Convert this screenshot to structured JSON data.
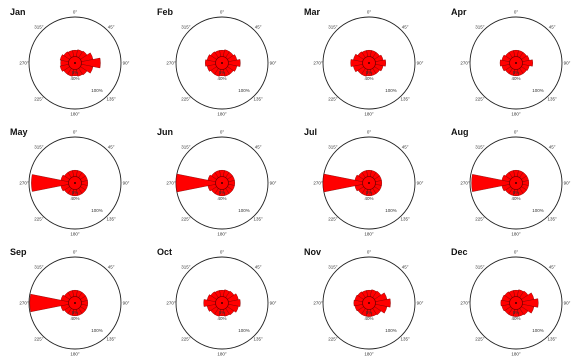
{
  "colors": {
    "petal": "#ff0000",
    "outline": "#7a0000",
    "background": "#ffffff",
    "frame": "#222222"
  },
  "chart_data": {
    "type": "polar-bar",
    "angle_ticks": [
      "0°",
      "45°",
      "90°",
      "135°",
      "180°",
      "225°",
      "270°",
      "315°"
    ],
    "radius_ticks": [
      "5%",
      "40%",
      "100%"
    ],
    "directions_deg": [
      0,
      22.5,
      45,
      67.5,
      90,
      112.5,
      135,
      157.5,
      180,
      202.5,
      225,
      247.5,
      270,
      292.5,
      315,
      337.5
    ],
    "panels": [
      {
        "month": "Jan",
        "values": [
          0.16,
          0.18,
          0.2,
          0.3,
          0.48,
          0.3,
          0.2,
          0.18,
          0.16,
          0.18,
          0.18,
          0.22,
          0.2,
          0.22,
          0.18,
          0.16
        ]
      },
      {
        "month": "Feb",
        "values": [
          0.16,
          0.18,
          0.18,
          0.22,
          0.3,
          0.22,
          0.18,
          0.18,
          0.16,
          0.18,
          0.18,
          0.22,
          0.26,
          0.22,
          0.18,
          0.16
        ]
      },
      {
        "month": "Mar",
        "values": [
          0.16,
          0.16,
          0.16,
          0.2,
          0.26,
          0.2,
          0.16,
          0.16,
          0.16,
          0.18,
          0.18,
          0.24,
          0.3,
          0.24,
          0.18,
          0.16
        ]
      },
      {
        "month": "Apr",
        "values": [
          0.16,
          0.16,
          0.16,
          0.18,
          0.26,
          0.18,
          0.16,
          0.16,
          0.16,
          0.16,
          0.16,
          0.2,
          0.24,
          0.2,
          0.16,
          0.16
        ]
      },
      {
        "month": "May",
        "values": [
          0.16,
          0.16,
          0.16,
          0.16,
          0.16,
          0.16,
          0.16,
          0.16,
          0.16,
          0.16,
          0.16,
          0.2,
          0.94,
          0.2,
          0.16,
          0.16
        ]
      },
      {
        "month": "Jun",
        "values": [
          0.16,
          0.16,
          0.16,
          0.16,
          0.16,
          0.16,
          0.16,
          0.16,
          0.16,
          0.16,
          0.16,
          0.2,
          1.0,
          0.2,
          0.16,
          0.16
        ]
      },
      {
        "month": "Jul",
        "values": [
          0.16,
          0.16,
          0.16,
          0.16,
          0.16,
          0.16,
          0.16,
          0.16,
          0.16,
          0.16,
          0.16,
          0.2,
          1.0,
          0.2,
          0.16,
          0.16
        ]
      },
      {
        "month": "Aug",
        "values": [
          0.16,
          0.16,
          0.16,
          0.16,
          0.16,
          0.16,
          0.16,
          0.16,
          0.16,
          0.16,
          0.16,
          0.2,
          0.96,
          0.2,
          0.16,
          0.16
        ]
      },
      {
        "month": "Sep",
        "values": [
          0.16,
          0.16,
          0.16,
          0.16,
          0.16,
          0.16,
          0.16,
          0.16,
          0.16,
          0.16,
          0.16,
          0.2,
          0.98,
          0.2,
          0.16,
          0.16
        ]
      },
      {
        "month": "Oct",
        "values": [
          0.16,
          0.18,
          0.2,
          0.26,
          0.3,
          0.26,
          0.2,
          0.18,
          0.16,
          0.18,
          0.18,
          0.22,
          0.3,
          0.22,
          0.18,
          0.16
        ]
      },
      {
        "month": "Nov",
        "values": [
          0.16,
          0.18,
          0.2,
          0.3,
          0.38,
          0.3,
          0.2,
          0.18,
          0.18,
          0.18,
          0.18,
          0.2,
          0.22,
          0.2,
          0.18,
          0.16
        ]
      },
      {
        "month": "Dec",
        "values": [
          0.16,
          0.18,
          0.2,
          0.3,
          0.4,
          0.3,
          0.2,
          0.18,
          0.18,
          0.18,
          0.18,
          0.2,
          0.22,
          0.2,
          0.18,
          0.16
        ]
      }
    ]
  }
}
